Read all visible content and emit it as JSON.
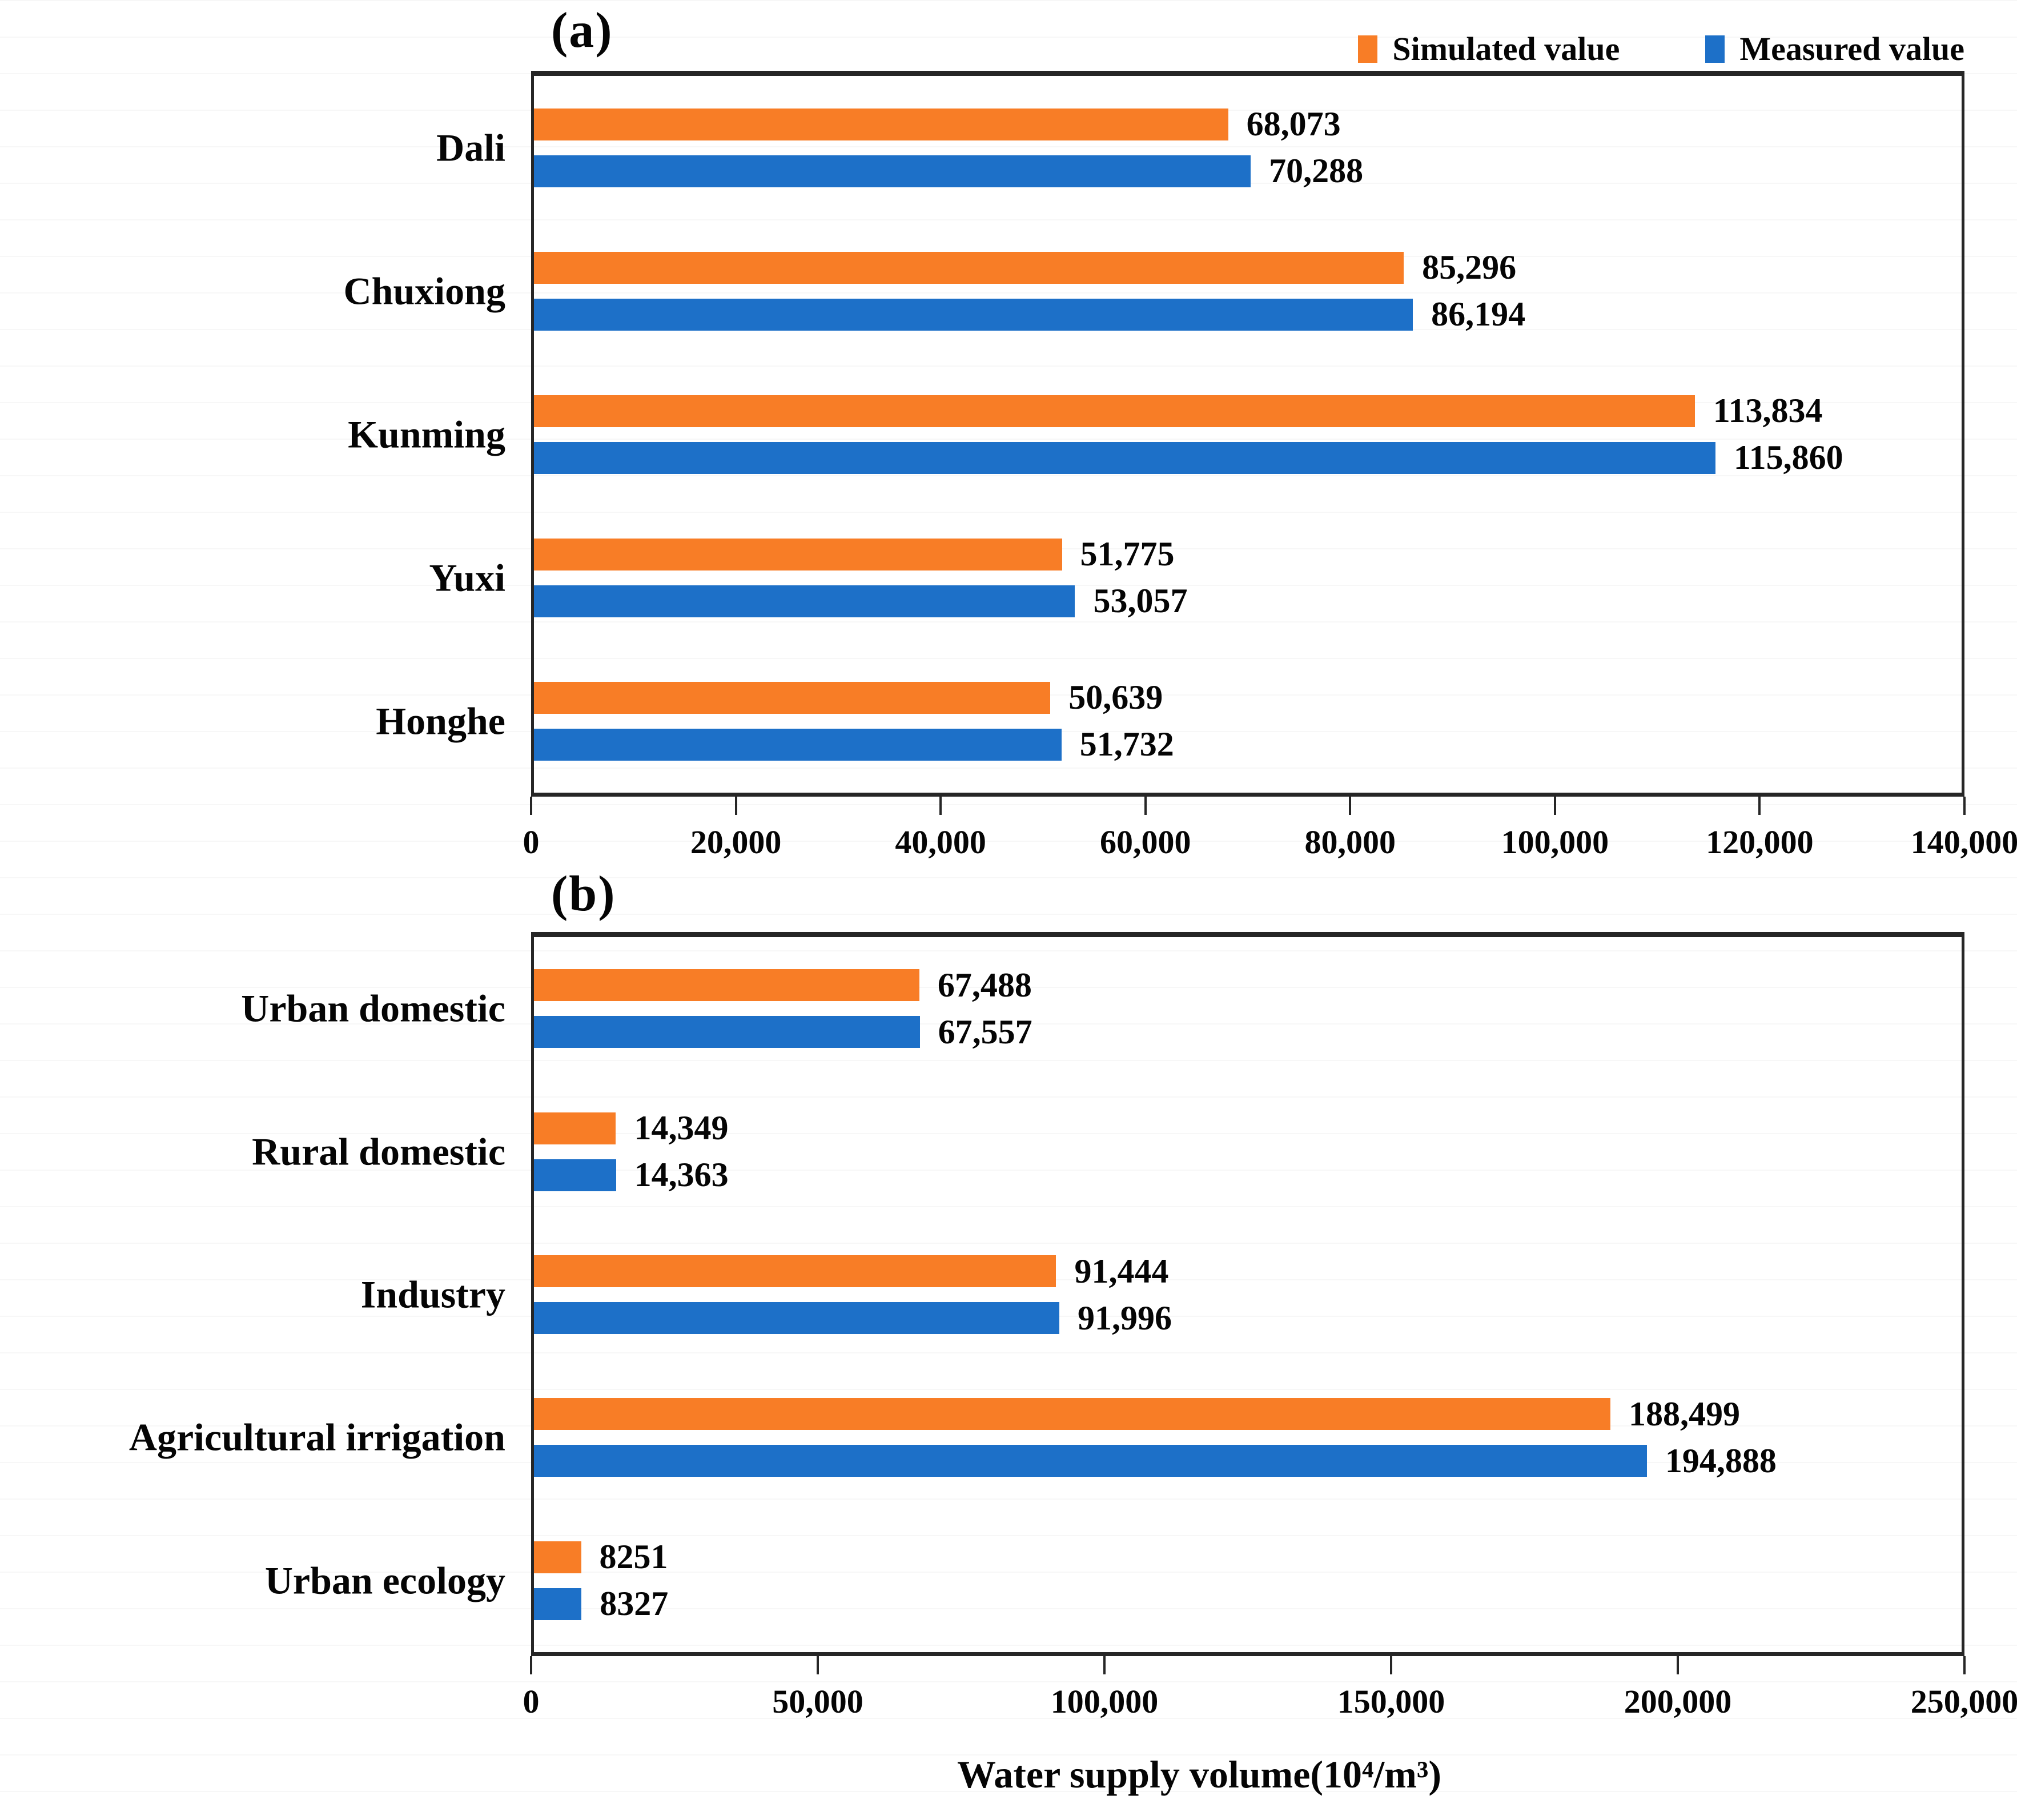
{
  "figure": {
    "xlabel": "Water supply volume(10⁴/m³)"
  },
  "legend": {
    "simulated": "Simulated value",
    "measured": "Measured value",
    "simulated_color": "#F87D26",
    "measured_color": "#1D70C8"
  },
  "chart_data": [
    {
      "type": "bar",
      "orientation": "horizontal",
      "tag": "(a)",
      "categories": [
        "Dali",
        "Chuxiong",
        "Kunming",
        "Yuxi",
        "Honghe"
      ],
      "series": [
        {
          "name": "Simulated value",
          "color": "#F87D26",
          "values": [
            68073,
            85296,
            113834,
            51775,
            50639
          ],
          "labels": [
            "68,073",
            "85,296",
            "113,834",
            "51,775",
            "50,639"
          ]
        },
        {
          "name": "Measured value",
          "color": "#1D70C8",
          "values": [
            70288,
            86194,
            115860,
            53057,
            51732
          ],
          "labels": [
            "70,288",
            "86,194",
            "115,860",
            "53,057",
            "51,732"
          ]
        }
      ],
      "xlim": [
        0,
        140000
      ],
      "xticks": [
        "0",
        "20,000",
        "40,000",
        "60,000",
        "80,000",
        "100,000",
        "120,000",
        "140,000"
      ],
      "grid": false,
      "legend_position": "top-right"
    },
    {
      "type": "bar",
      "orientation": "horizontal",
      "tag": "(b)",
      "categories": [
        "Urban domestic",
        "Rural domestic",
        "Industry",
        "Agricultural irrigation",
        "Urban ecology"
      ],
      "series": [
        {
          "name": "Simulated value",
          "color": "#F87D26",
          "values": [
            67488,
            14349,
            91444,
            188499,
            8251
          ],
          "labels": [
            "67,488",
            "14,349",
            "91,444",
            "188,499",
            "8251"
          ]
        },
        {
          "name": "Measured value",
          "color": "#1D70C8",
          "values": [
            67557,
            14363,
            91996,
            194888,
            8327
          ],
          "labels": [
            "67,557",
            "14,363",
            "91,996",
            "194,888",
            "8327"
          ]
        }
      ],
      "xlim": [
        0,
        250000
      ],
      "xticks": [
        "0",
        "50,000",
        "100,000",
        "150,000",
        "200,000",
        "250,000"
      ],
      "grid": false
    }
  ]
}
